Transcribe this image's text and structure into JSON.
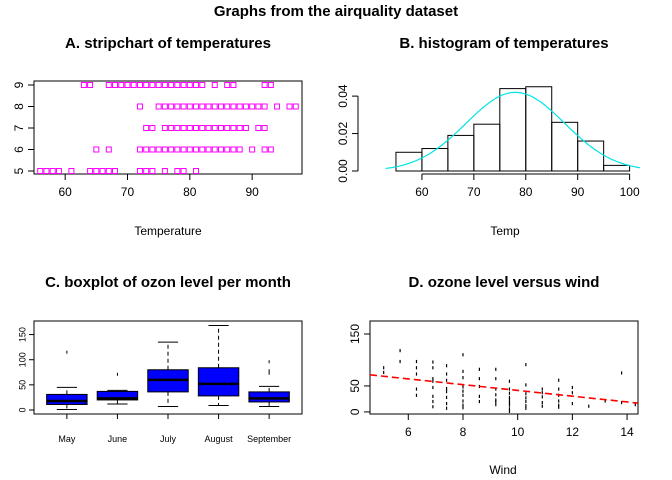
{
  "figure": {
    "title": "Graphs from the airquality dataset"
  },
  "chart_data": [
    {
      "type": "scatter",
      "variant": "stripchart",
      "title": "A. stripchart of temperatures",
      "xlabel": "Temperature",
      "ylabel": "",
      "xlim": [
        55,
        98
      ],
      "ylim": [
        5,
        9
      ],
      "xticks": [
        60,
        70,
        80,
        90
      ],
      "yticks": [
        5,
        6,
        7,
        8,
        9
      ],
      "marker": "open-square",
      "color": "#ff00ff",
      "strips": [
        {
          "y": 5,
          "x": [
            56,
            57,
            58,
            59,
            61,
            64,
            65,
            66,
            67,
            68,
            72,
            73,
            74,
            76,
            78,
            79,
            81
          ]
        },
        {
          "y": 6,
          "x": [
            65,
            67,
            72,
            73,
            74,
            75,
            76,
            77,
            78,
            79,
            80,
            81,
            82,
            83,
            84,
            85,
            86,
            87,
            88,
            90,
            92,
            93
          ]
        },
        {
          "y": 7,
          "x": [
            73,
            74,
            76,
            77,
            78,
            79,
            80,
            81,
            82,
            83,
            84,
            85,
            86,
            87,
            88,
            89,
            91,
            92
          ]
        },
        {
          "y": 8,
          "x": [
            72,
            75,
            76,
            77,
            78,
            79,
            80,
            81,
            82,
            83,
            84,
            85,
            86,
            87,
            88,
            89,
            90,
            91,
            92,
            94,
            96,
            97
          ]
        },
        {
          "y": 9,
          "x": [
            63,
            64,
            67,
            68,
            69,
            70,
            71,
            72,
            73,
            74,
            75,
            76,
            77,
            78,
            79,
            80,
            81,
            82,
            84,
            86,
            87,
            92,
            93
          ]
        }
      ]
    },
    {
      "type": "bar",
      "variant": "histogram-with-density",
      "title": "B. histogram of temperatures",
      "xlabel": "Temp",
      "ylabel": "",
      "xlim": [
        50,
        102
      ],
      "ylim": [
        0,
        0.047
      ],
      "xticks": [
        60,
        70,
        80,
        90,
        100
      ],
      "yticks": [
        0.0,
        0.02,
        0.04
      ],
      "ytick_labels": [
        "0.00",
        "0.02",
        "0.04"
      ],
      "bins": [
        {
          "from": 55,
          "to": 60,
          "density": 0.01
        },
        {
          "from": 60,
          "to": 65,
          "density": 0.012
        },
        {
          "from": 65,
          "to": 70,
          "density": 0.019
        },
        {
          "from": 70,
          "to": 75,
          "density": 0.025
        },
        {
          "from": 75,
          "to": 80,
          "density": 0.044
        },
        {
          "from": 80,
          "to": 85,
          "density": 0.045
        },
        {
          "from": 85,
          "to": 90,
          "density": 0.026
        },
        {
          "from": 90,
          "to": 95,
          "density": 0.016
        },
        {
          "from": 95,
          "to": 100,
          "density": 0.003
        }
      ],
      "curve": {
        "kind": "normal-density",
        "mean": 78,
        "sd": 9.5,
        "x_range": [
          53,
          102
        ],
        "color": "#00e5e5"
      }
    },
    {
      "type": "box",
      "title": "C. boxplot of ozon level per month",
      "xlabel": "",
      "ylabel": "",
      "ylim": [
        0,
        175
      ],
      "yticks": [
        0,
        50,
        100,
        150
      ],
      "categories": [
        "May",
        "June",
        "July",
        "August",
        "September"
      ],
      "fill": "#0000ff",
      "boxes": [
        {
          "min": 1,
          "q1": 11,
          "median": 18,
          "q3": 31,
          "max": 45,
          "outliers": [
            115
          ]
        },
        {
          "min": 12,
          "q1": 20,
          "median": 23,
          "q3": 37,
          "max": 39,
          "outliers": [
            71
          ]
        },
        {
          "min": 7,
          "q1": 36,
          "median": 60,
          "q3": 80,
          "max": 135,
          "outliers": []
        },
        {
          "min": 9,
          "q1": 28,
          "median": 52,
          "q3": 84,
          "max": 168,
          "outliers": []
        },
        {
          "min": 7,
          "q1": 16,
          "median": 23,
          "q3": 36,
          "max": 47,
          "outliers": [
            96,
            78,
            73
          ]
        }
      ]
    },
    {
      "type": "scatter",
      "title": "D. ozone level versus wind",
      "xlabel": "Wind",
      "ylabel": "",
      "xlim": [
        4.6,
        14.4
      ],
      "ylim": [
        -4,
        175
      ],
      "xticks": [
        6,
        8,
        10,
        12,
        14
      ],
      "yticks": [
        0,
        50,
        150
      ],
      "marker": "short-vertical-tick",
      "color": "#000000",
      "points": [
        [
          5.1,
          85
        ],
        [
          5.1,
          76
        ],
        [
          5.7,
          118
        ],
        [
          5.7,
          97
        ],
        [
          6.3,
          97
        ],
        [
          6.3,
          85
        ],
        [
          6.3,
          73
        ],
        [
          6.3,
          44
        ],
        [
          6.3,
          32
        ],
        [
          6.9,
          96
        ],
        [
          6.9,
          85
        ],
        [
          6.9,
          64
        ],
        [
          6.9,
          59
        ],
        [
          6.9,
          47
        ],
        [
          6.9,
          30
        ],
        [
          6.9,
          20
        ],
        [
          6.9,
          10
        ],
        [
          7.4,
          89
        ],
        [
          7.4,
          73
        ],
        [
          7.4,
          61
        ],
        [
          7.4,
          45
        ],
        [
          7.4,
          39
        ],
        [
          7.4,
          28
        ],
        [
          7.4,
          16
        ],
        [
          7.4,
          7
        ],
        [
          8.0,
          110
        ],
        [
          8.0,
          78
        ],
        [
          8.0,
          66
        ],
        [
          8.0,
          48
        ],
        [
          8.0,
          40
        ],
        [
          8.0,
          32
        ],
        [
          8.0,
          21
        ],
        [
          8.0,
          13
        ],
        [
          8.0,
          8
        ],
        [
          8.6,
          82
        ],
        [
          8.6,
          64
        ],
        [
          8.6,
          49
        ],
        [
          8.6,
          30
        ],
        [
          8.6,
          20
        ],
        [
          9.2,
          82
        ],
        [
          9.2,
          64
        ],
        [
          9.2,
          44
        ],
        [
          9.2,
          33
        ],
        [
          9.2,
          23
        ],
        [
          9.2,
          20
        ],
        [
          9.2,
          14
        ],
        [
          9.7,
          59
        ],
        [
          9.7,
          44
        ],
        [
          9.7,
          36
        ],
        [
          9.7,
          28
        ],
        [
          9.7,
          23
        ],
        [
          9.7,
          18
        ],
        [
          9.7,
          13
        ],
        [
          9.7,
          6
        ],
        [
          9.7,
          1
        ],
        [
          10.3,
          91
        ],
        [
          10.3,
          52
        ],
        [
          10.3,
          35
        ],
        [
          10.3,
          27
        ],
        [
          10.3,
          20
        ],
        [
          10.3,
          12
        ],
        [
          10.3,
          7
        ],
        [
          10.9,
          44
        ],
        [
          10.9,
          37
        ],
        [
          10.9,
          29
        ],
        [
          10.9,
          18
        ],
        [
          10.9,
          11
        ],
        [
          11.5,
          61
        ],
        [
          11.5,
          44
        ],
        [
          11.5,
          32
        ],
        [
          11.5,
          21
        ],
        [
          11.5,
          13
        ],
        [
          11.5,
          9
        ],
        [
          12.0,
          47
        ],
        [
          12.0,
          37
        ],
        [
          12.0,
          16
        ],
        [
          12.6,
          11
        ],
        [
          13.2,
          21
        ],
        [
          13.8,
          75
        ],
        [
          13.8,
          18
        ],
        [
          14.3,
          14
        ]
      ],
      "trendline": {
        "slope": -5.55,
        "intercept": 96.9,
        "color": "#ff0000",
        "style": "dashed"
      }
    }
  ]
}
